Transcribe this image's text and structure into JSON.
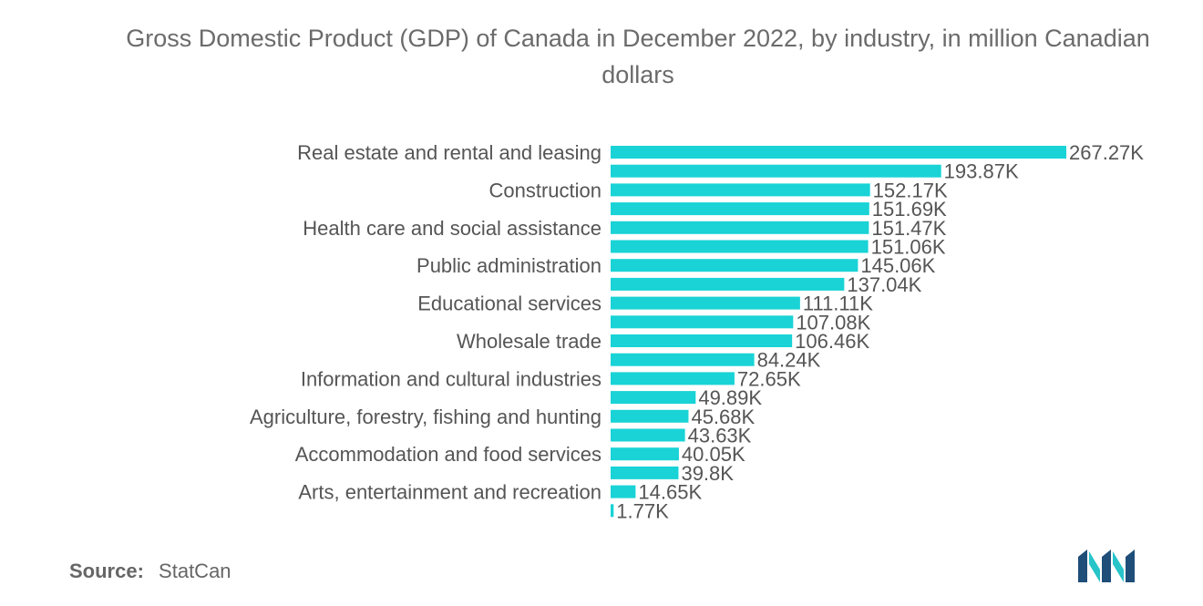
{
  "title": "Gross Domestic Product (GDP) of Canada in December 2022, by industry, in million Canadian dollars",
  "source": {
    "label": "Source:",
    "value": "StatCan"
  },
  "colors": {
    "bar": "#19d3d6",
    "text": "#555555",
    "logo_dark": "#1f4e79",
    "logo_teal": "#27c4c9"
  },
  "chart_data": {
    "type": "bar",
    "orientation": "horizontal",
    "title": "Gross Domestic Product (GDP) of Canada in December 2022, by industry, in million Canadian dollars",
    "categories": [
      "Real estate and rental and leasing",
      "",
      "Construction",
      "",
      "Health care and social assistance",
      "",
      "Public administration",
      "",
      "Educational services",
      "",
      "Wholesale trade",
      "",
      "Information and cultural industries",
      "",
      "Agriculture, forestry, fishing and hunting",
      "",
      "Accommodation and food services",
      "",
      "Arts, entertainment and recreation",
      ""
    ],
    "values": [
      267.27,
      193.87,
      152.17,
      151.69,
      151.47,
      151.06,
      145.06,
      137.04,
      111.11,
      107.08,
      106.46,
      84.24,
      72.65,
      49.89,
      45.68,
      43.63,
      40.05,
      39.8,
      14.65,
      1.77
    ],
    "value_labels": [
      "267.27K",
      "193.87K",
      "152.17K",
      "151.69K",
      "151.47K",
      "151.06K",
      "145.06K",
      "137.04K",
      "111.11K",
      "107.08K",
      "106.46K",
      "84.24K",
      "72.65K",
      "49.89K",
      "45.68K",
      "43.63K",
      "40.05K",
      "39.8K",
      "14.65K",
      "1.77K"
    ],
    "unit": "K",
    "xlim": [
      0,
      267.27
    ],
    "grid": false,
    "legend": "none"
  }
}
